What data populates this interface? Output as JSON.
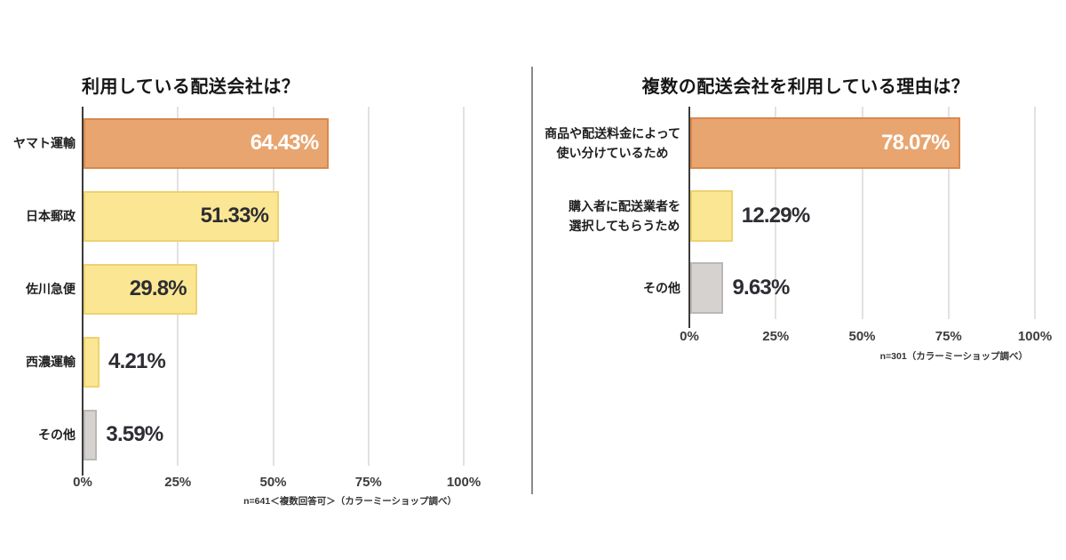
{
  "page": {
    "background": "#ffffff"
  },
  "divider": {
    "color": "#8a8a8a"
  },
  "palette": {
    "orange": {
      "fill": "#E8A570",
      "border": "#D9884C"
    },
    "yellow": {
      "fill": "#FBE793",
      "border": "#EFD170"
    },
    "gray": {
      "fill": "#D5D2D0",
      "border": "#BBB7B4"
    }
  },
  "text_colors": {
    "title": "#161616",
    "category": "#1f1f1f",
    "value_dark": "#2d2d33",
    "value_light": "#ffffff",
    "tick": "#3c3c3c",
    "note": "#333333",
    "grid": "#e2e2e2",
    "axis": "#3b3b3b"
  },
  "chart_data": [
    {
      "type": "bar",
      "orientation": "horizontal",
      "title": "利用している配送会社は？",
      "categories": [
        "ヤマト運輸",
        "日本郵政",
        "佐川急便",
        "西濃運輸",
        "その他"
      ],
      "values": [
        64.43,
        51.33,
        29.8,
        4.21,
        3.59
      ],
      "value_labels": [
        "64.43%",
        "51.33%",
        "29.8%",
        "4.21%",
        "3.59%"
      ],
      "bar_palette": [
        "orange",
        "yellow",
        "yellow",
        "yellow",
        "gray"
      ],
      "value_inside": [
        true,
        true,
        true,
        false,
        false
      ],
      "value_color_key": [
        "value_light",
        "value_dark",
        "value_dark",
        "value_dark",
        "value_dark"
      ],
      "xlim": [
        0,
        100
      ],
      "x_ticks": [
        {
          "label": "0%",
          "value": 0
        },
        {
          "label": "25%",
          "value": 25
        },
        {
          "label": "50%",
          "value": 50
        },
        {
          "label": "75%",
          "value": 75
        },
        {
          "label": "100%",
          "value": 100
        }
      ],
      "grid": true,
      "legend": "none",
      "note": "n=641＜複数回答可＞（カラーミーショップ調べ）"
    },
    {
      "type": "bar",
      "orientation": "horizontal",
      "title": "複数の配送会社を利用している理由は？",
      "categories": [
        "商品や配送料金によって\n使い分けているため",
        "購入者に配送業者を\n選択してもらうため",
        "その他"
      ],
      "values": [
        78.07,
        12.29,
        9.63
      ],
      "value_labels": [
        "78.07%",
        "12.29%",
        "9.63%"
      ],
      "bar_palette": [
        "orange",
        "yellow",
        "gray"
      ],
      "value_inside": [
        true,
        false,
        false
      ],
      "value_color_key": [
        "value_light",
        "value_dark",
        "value_dark"
      ],
      "xlim": [
        0,
        100
      ],
      "x_ticks": [
        {
          "label": "0%",
          "value": 0
        },
        {
          "label": "25%",
          "value": 25
        },
        {
          "label": "50%",
          "value": 50
        },
        {
          "label": "75%",
          "value": 75
        },
        {
          "label": "100%",
          "value": 100
        }
      ],
      "grid": true,
      "legend": "none",
      "note": "n=301（カラーミーショップ調べ）"
    }
  ]
}
